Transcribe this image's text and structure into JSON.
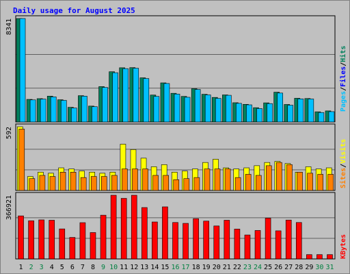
{
  "chart_data": {
    "type": "bar",
    "title": "Daily usage for August 2025",
    "x": [
      "1",
      "2",
      "3",
      "4",
      "5",
      "6",
      "7",
      "8",
      "9",
      "10",
      "11",
      "12",
      "13",
      "14",
      "15",
      "16",
      "17",
      "18",
      "19",
      "20",
      "21",
      "22",
      "23",
      "24",
      "25",
      "26",
      "27",
      "28",
      "29",
      "30",
      "31"
    ],
    "weekend_days": [
      "2",
      "3",
      "9",
      "10",
      "16",
      "17",
      "23",
      "24",
      "30",
      "31"
    ],
    "panels": [
      {
        "key": "top",
        "max_label": "8341",
        "ymax": 8341,
        "series": [
          {
            "name": "Hits",
            "color": "#00805c",
            "values": [
              8341,
              1820,
              1880,
              2080,
              1790,
              1180,
              2120,
              1280,
              2850,
              4050,
              4370,
              4380,
              3560,
              2170,
              3150,
              2310,
              2060,
              2680,
              2230,
              1980,
              2180,
              1550,
              1420,
              1150,
              1540,
              2400,
              1410,
              1910,
              1890,
              820,
              890
            ]
          },
          {
            "name": "Files",
            "color": "#0000ff",
            "values": [
              0,
              0,
              0,
              0,
              0,
              0,
              0,
              0,
              0,
              0,
              0,
              0,
              0,
              0,
              0,
              0,
              0,
              0,
              0,
              0,
              0,
              0,
              0,
              0,
              0,
              0,
              0,
              0,
              0,
              0,
              0
            ]
          },
          {
            "name": "Pages",
            "color": "#00c0ff",
            "values": [
              8341,
              1780,
              1840,
              2020,
              1740,
              1120,
              2080,
              1230,
              2780,
              3970,
              4300,
              4330,
              3500,
              2060,
              3100,
              2250,
              1990,
              2620,
              2180,
              1900,
              2150,
              1500,
              1380,
              1080,
              1480,
              2330,
              1350,
              1860,
              1850,
              760,
              830
            ]
          }
        ]
      },
      {
        "key": "middle",
        "max_label": "592",
        "ymax": 592,
        "series": [
          {
            "name": "Visits",
            "color": "#ffff00",
            "values": [
              592,
              130,
              170,
              160,
              210,
              200,
              180,
              170,
              160,
              170,
              430,
              380,
              300,
              220,
              240,
              170,
              180,
              200,
              260,
              290,
              210,
              200,
              210,
              230,
              260,
              270,
              250,
              170,
              220,
              200,
              210
            ]
          },
          {
            "name": "Sites",
            "color": "#ff8000",
            "values": [
              570,
              110,
              140,
              130,
              170,
              170,
              120,
              130,
              130,
              140,
              200,
              200,
              200,
              140,
              140,
              100,
              110,
              120,
              200,
              200,
              200,
              120,
              150,
              140,
              230,
              260,
              240,
              170,
              160,
              150,
              150
            ]
          }
        ]
      },
      {
        "key": "bottom",
        "max_label": "366921",
        "ymax": 366921,
        "series": [
          {
            "name": "KBytes",
            "color": "#ff0000",
            "values": [
              248000,
              220000,
              225000,
              223000,
              173000,
              124000,
              209000,
              152000,
              252000,
              366921,
              349000,
              366921,
              296000,
              213000,
              300000,
              210000,
              205000,
              232000,
              218000,
              190000,
              223000,
              172000,
              138000,
              164000,
              235000,
              162000,
              224000,
              210000,
              25000,
              25000,
              25000
            ]
          }
        ]
      }
    ],
    "legends": {
      "top": [
        "Pages",
        "Files",
        "Hits"
      ],
      "middle": [
        "Sites",
        "Visits"
      ],
      "bottom": [
        "KBytes"
      ]
    },
    "separator": "/",
    "colors": {
      "background": "#c0c0c0",
      "plot_bg": "#c0c0c0",
      "title": "#0000ff",
      "label_normal": "#000000",
      "label_weekend": "#008040",
      "grid": "#000000"
    }
  }
}
